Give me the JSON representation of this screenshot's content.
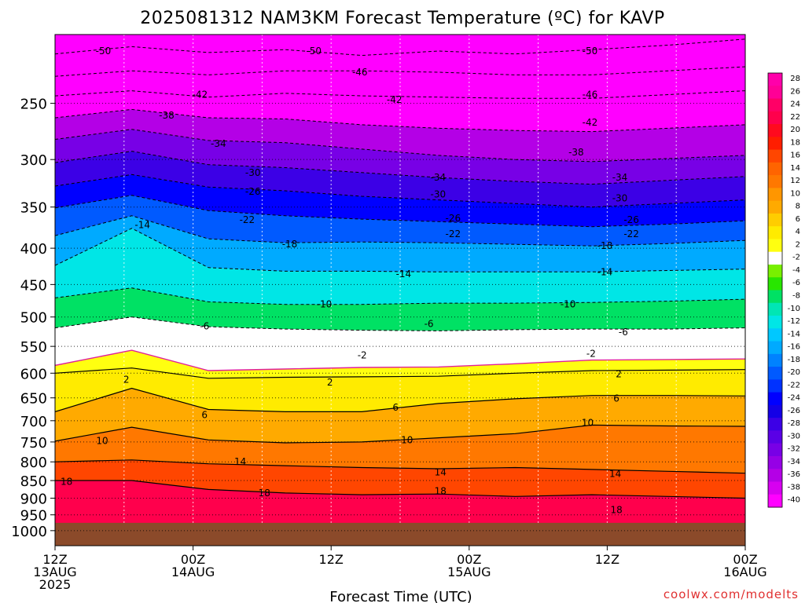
{
  "title": "2025081312 NAM3KM Forecast Temperature (ºC) for KAVP",
  "xlabel": "Forecast Time (UTC)",
  "credit": "coolwx.com/modelts",
  "chart_data": {
    "type": "heatmap",
    "subtype": "time-height cross section (filled contours)",
    "title": "2025081312 NAM3KM Forecast Temperature (ºC) for KAVP",
    "xlabel": "Forecast Time (UTC)",
    "ylabel": "",
    "y_axis": {
      "scale": "log-pressure",
      "reversed": true,
      "ticks": [
        250,
        300,
        350,
        400,
        450,
        500,
        550,
        600,
        650,
        700,
        750,
        800,
        850,
        900,
        950,
        1000
      ],
      "range_hPa": [
        200,
        1050
      ]
    },
    "x_axis": {
      "range_hours": [
        0,
        60
      ],
      "ticks": [
        {
          "h": 0,
          "lines": [
            "12Z",
            "13AUG",
            "2025"
          ]
        },
        {
          "h": 12,
          "lines": [
            "00Z",
            "14AUG"
          ]
        },
        {
          "h": 24,
          "lines": [
            "12Z"
          ]
        },
        {
          "h": 36,
          "lines": [
            "00Z",
            "15AUG"
          ]
        },
        {
          "h": 48,
          "lines": [
            "12Z"
          ]
        },
        {
          "h": 60,
          "lines": [
            "00Z",
            "16AUG"
          ]
        }
      ]
    },
    "grid": true,
    "terrain_color": "#8b4a2a",
    "surface_pressure_hPa": 975,
    "colorbar": {
      "placement": "right",
      "levels": [
        28,
        26,
        24,
        22,
        20,
        18,
        16,
        14,
        12,
        10,
        8,
        6,
        4,
        2,
        -2,
        -4,
        -6,
        -8,
        -10,
        -12,
        -14,
        -16,
        -18,
        -20,
        -22,
        -24,
        -26,
        -28,
        -30,
        -32,
        -34,
        -36,
        -38,
        -40
      ],
      "colors": [
        "#ff00aa",
        "#ff0096",
        "#ff0066",
        "#ff004c",
        "#ff0a1e",
        "#ff1e00",
        "#ff4600",
        "#ff6400",
        "#ff7800",
        "#ff9600",
        "#ffaa00",
        "#ffcd00",
        "#ffeb00",
        "#ffff10",
        "#ffffff",
        "#78f000",
        "#28e600",
        "#00e164",
        "#00e6b4",
        "#00e6e6",
        "#00c8ff",
        "#00aaff",
        "#0082ff",
        "#005aff",
        "#0032ff",
        "#0000ff",
        "#1400e6",
        "#3c00e6",
        "#5a00e6",
        "#7800e6",
        "#9600e6",
        "#b400e6",
        "#d700f0",
        "#ff00ff"
      ]
    },
    "isotherms": [
      {
        "value": -50,
        "style": "dashed",
        "p": [
          213,
          208,
          212,
          210,
          214,
          211,
          213,
          210,
          207,
          203
        ]
      },
      {
        "value": -46,
        "style": "dashed",
        "p": [
          229,
          225,
          228,
          225,
          225,
          226,
          228,
          228,
          225,
          222
        ]
      },
      {
        "value": -42,
        "style": "dashed",
        "p": [
          244,
          240,
          245,
          242,
          244,
          245,
          246,
          246,
          243,
          240
        ]
      },
      {
        "value": -38,
        "style": "dashed",
        "p": [
          262,
          255,
          262,
          263,
          268,
          271,
          273,
          274,
          271,
          268
        ]
      },
      {
        "value": -34,
        "style": "dashed",
        "p": [
          281,
          272,
          282,
          284,
          290,
          296,
          300,
          302,
          299,
          296
        ]
      },
      {
        "value": -30,
        "style": "dashed",
        "p": [
          303,
          292,
          305,
          308,
          313,
          318,
          322,
          325,
          321,
          317
        ]
      },
      {
        "value": -26,
        "style": "dashed",
        "p": [
          327,
          315,
          328,
          332,
          338,
          342,
          346,
          350,
          346,
          342
        ]
      },
      {
        "value": -22,
        "style": "dashed",
        "p": [
          351,
          337,
          354,
          360,
          364,
          367,
          370,
          373,
          370,
          366
        ]
      },
      {
        "value": -18,
        "style": "dashed",
        "p": [
          384,
          360,
          388,
          393,
          392,
          393,
          395,
          397,
          394,
          390
        ]
      },
      {
        "value": -14,
        "style": "dashed",
        "p": [
          423,
          375,
          426,
          431,
          431,
          432,
          432,
          432,
          430,
          428
        ]
      },
      {
        "value": -10,
        "style": "dashed",
        "p": [
          470,
          455,
          476,
          480,
          480,
          478,
          478,
          477,
          475,
          472
        ]
      },
      {
        "value": -6,
        "style": "dashed",
        "p": [
          518,
          500,
          516,
          520,
          522,
          523,
          521,
          520,
          520,
          518
        ]
      },
      {
        "value": 2,
        "style": "pink",
        "p": [
          585,
          557,
          595,
          592,
          589,
          588,
          582,
          575,
          574,
          573
        ]
      },
      {
        "value": 2,
        "style": "solid",
        "p": [
          600,
          590,
          610,
          608,
          607,
          606,
          600,
          595,
          594,
          593
        ]
      },
      {
        "value": 6,
        "style": "solid",
        "p": [
          680,
          630,
          675,
          680,
          680,
          662,
          652,
          645,
          645,
          646
        ]
      },
      {
        "value": 10,
        "style": "solid",
        "p": [
          748,
          715,
          745,
          752,
          750,
          740,
          730,
          710,
          712,
          713
        ]
      },
      {
        "value": 14,
        "style": "solid",
        "p": [
          800,
          795,
          805,
          810,
          815,
          818,
          815,
          820,
          825,
          830
        ]
      },
      {
        "value": 18,
        "style": "solid",
        "p": [
          850,
          850,
          875,
          885,
          890,
          888,
          895,
          890,
          895,
          900
        ]
      }
    ],
    "contour_labels": [
      {
        "text": "-50",
        "h": 4.2,
        "p": 211
      },
      {
        "text": "-50",
        "h": 22.5,
        "p": 211
      },
      {
        "text": "-50",
        "h": 46.5,
        "p": 211
      },
      {
        "text": "-46",
        "h": 26.5,
        "p": 226
      },
      {
        "text": "-46",
        "h": 46.5,
        "p": 243
      },
      {
        "text": "-42",
        "h": 12.6,
        "p": 243
      },
      {
        "text": "-42",
        "h": 29.5,
        "p": 247
      },
      {
        "text": "-42",
        "h": 46.5,
        "p": 266
      },
      {
        "text": "-38",
        "h": 9.7,
        "p": 260
      },
      {
        "text": "-38",
        "h": 45.3,
        "p": 293
      },
      {
        "text": "-34",
        "h": 14.2,
        "p": 285
      },
      {
        "text": "-34",
        "h": 33.3,
        "p": 318
      },
      {
        "text": "-34",
        "h": 49.1,
        "p": 318
      },
      {
        "text": "-30",
        "h": 17.2,
        "p": 313
      },
      {
        "text": "-30",
        "h": 33.3,
        "p": 336
      },
      {
        "text": "-30",
        "h": 49.1,
        "p": 340
      },
      {
        "text": "-26",
        "h": 17.2,
        "p": 333
      },
      {
        "text": "-26",
        "h": 34.6,
        "p": 363
      },
      {
        "text": "-26",
        "h": 50.1,
        "p": 365
      },
      {
        "text": "-22",
        "h": 16.7,
        "p": 365
      },
      {
        "text": "-22",
        "h": 34.6,
        "p": 382
      },
      {
        "text": "-22",
        "h": 50.1,
        "p": 382
      },
      {
        "text": "-18",
        "h": 20.4,
        "p": 395
      },
      {
        "text": "-18",
        "h": 47.8,
        "p": 397
      },
      {
        "text": "-14",
        "h": 7.6,
        "p": 371
      },
      {
        "text": "-14",
        "h": 30.3,
        "p": 435
      },
      {
        "text": "-14",
        "h": 47.8,
        "p": 432
      },
      {
        "text": "-10",
        "h": 23.4,
        "p": 480
      },
      {
        "text": "-10",
        "h": 44.6,
        "p": 480
      },
      {
        "text": "-6",
        "h": 13.0,
        "p": 515
      },
      {
        "text": "-6",
        "h": 32.5,
        "p": 511
      },
      {
        "text": "-6",
        "h": 49.4,
        "p": 525
      },
      {
        "text": "-2",
        "h": 26.7,
        "p": 566
      },
      {
        "text": "-2",
        "h": 46.6,
        "p": 563
      },
      {
        "text": "2",
        "h": 6.2,
        "p": 613
      },
      {
        "text": "2",
        "h": 23.9,
        "p": 618
      },
      {
        "text": "2",
        "h": 49.0,
        "p": 602
      },
      {
        "text": "6",
        "h": 13.0,
        "p": 687
      },
      {
        "text": "6",
        "h": 29.6,
        "p": 671
      },
      {
        "text": "6",
        "h": 48.8,
        "p": 651
      },
      {
        "text": "10",
        "h": 4.1,
        "p": 747
      },
      {
        "text": "10",
        "h": 30.6,
        "p": 745
      },
      {
        "text": "10",
        "h": 46.3,
        "p": 705
      },
      {
        "text": "14",
        "h": 16.1,
        "p": 800
      },
      {
        "text": "14",
        "h": 33.5,
        "p": 828
      },
      {
        "text": "14",
        "h": 48.7,
        "p": 832
      },
      {
        "text": "18",
        "h": 1.0,
        "p": 853
      },
      {
        "text": "18",
        "h": 18.2,
        "p": 885
      },
      {
        "text": "18",
        "h": 33.5,
        "p": 880
      },
      {
        "text": "18",
        "h": 48.8,
        "p": 935
      }
    ]
  }
}
